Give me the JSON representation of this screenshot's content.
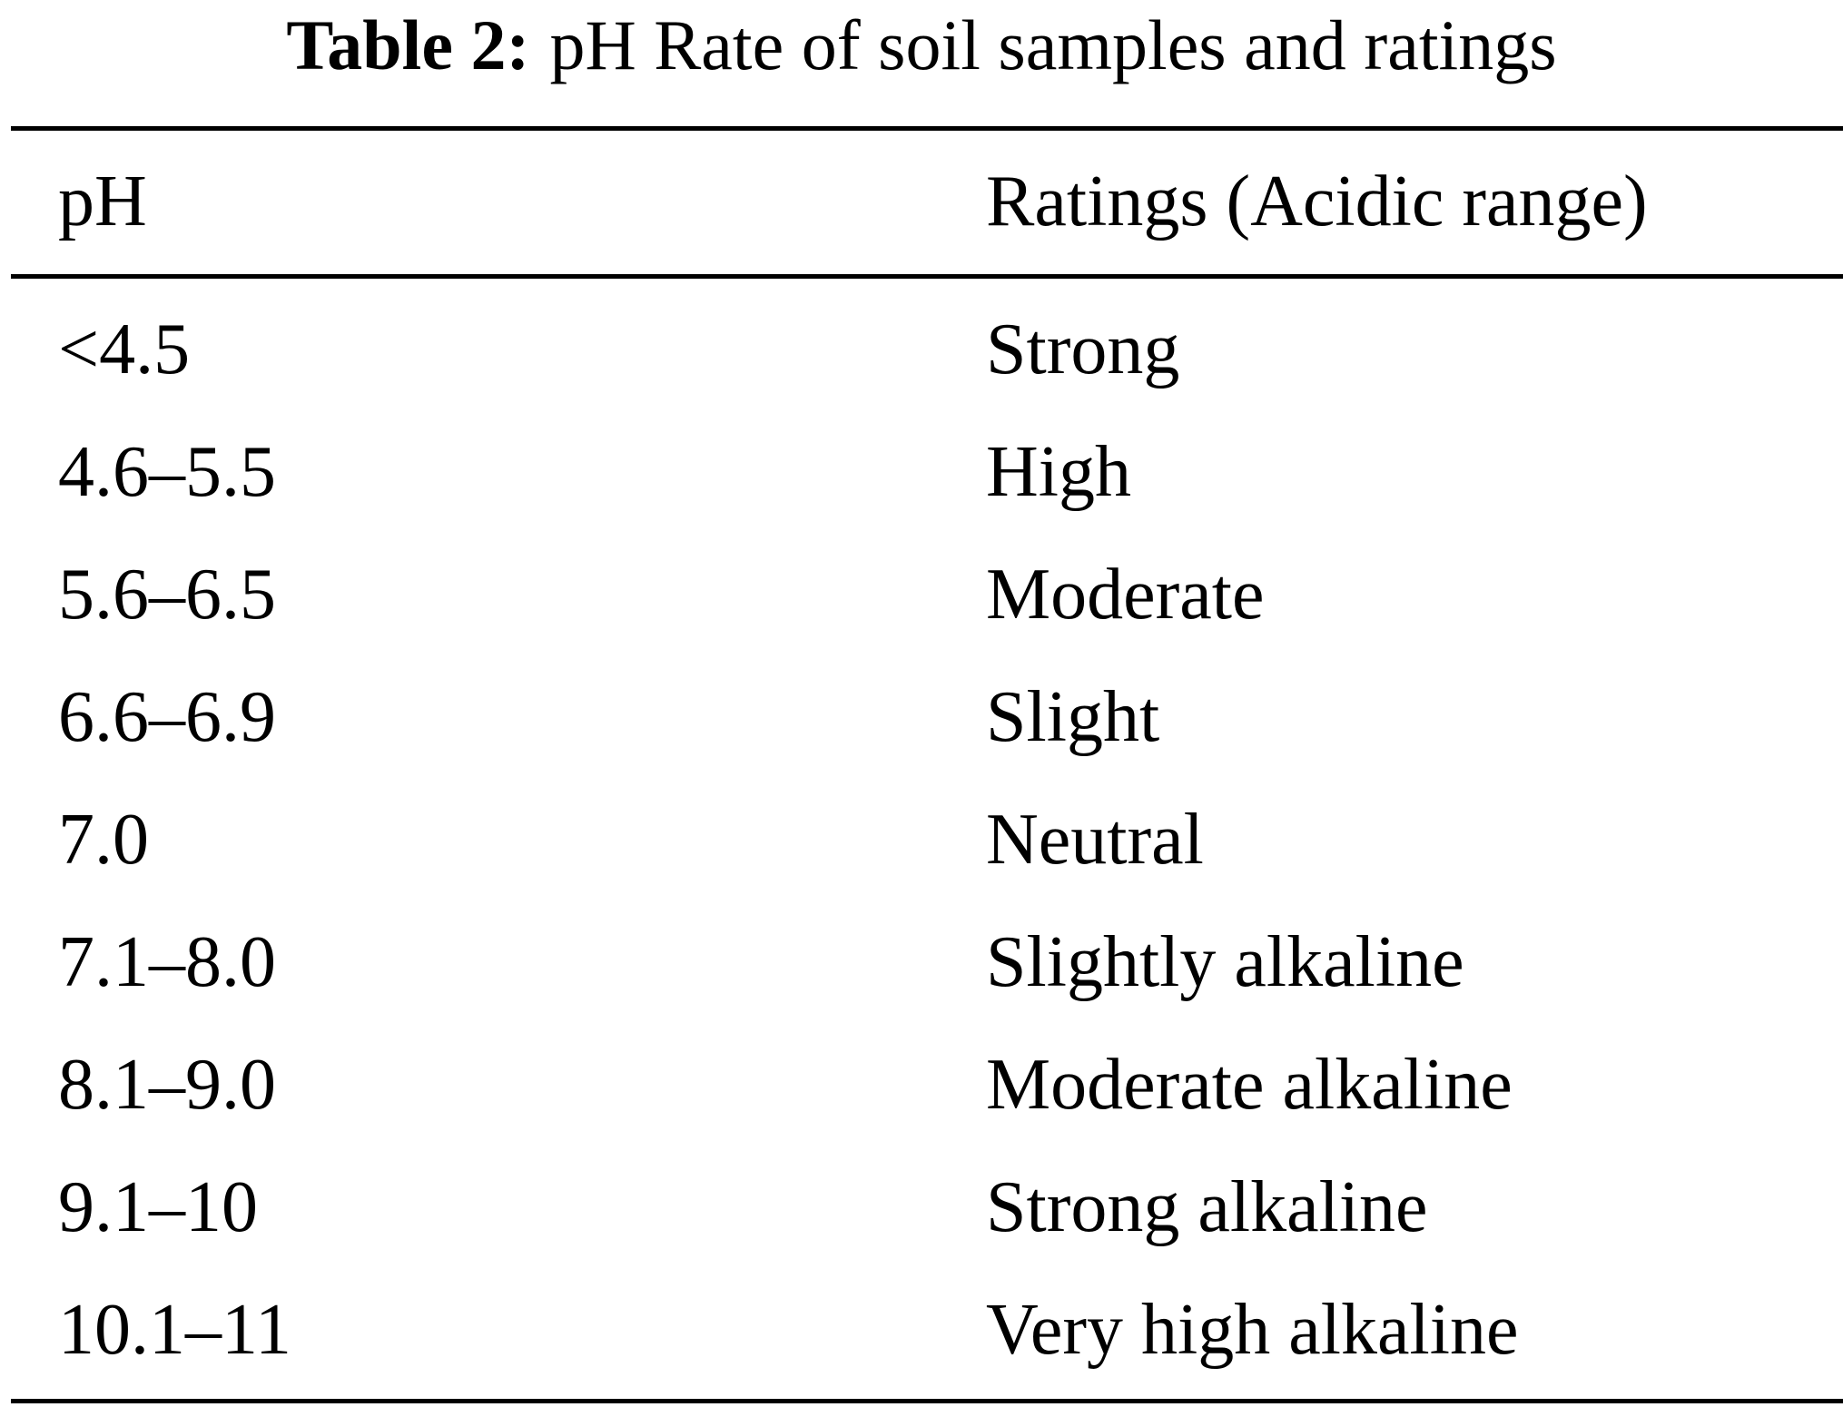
{
  "caption": {
    "label": "Table 2:",
    "text": "pH Rate of soil samples and ratings"
  },
  "table": {
    "headers": {
      "ph": "pH",
      "rating": "Ratings (Acidic range)"
    },
    "rows": [
      {
        "ph": "<4.5",
        "rating": "Strong"
      },
      {
        "ph": "4.6–5.5",
        "rating": "High"
      },
      {
        "ph": "5.6–6.5",
        "rating": "Moderate"
      },
      {
        "ph": "6.6–6.9",
        "rating": "Slight"
      },
      {
        "ph": "7.0",
        "rating": "Neutral"
      },
      {
        "ph": "7.1–8.0",
        "rating": "Slightly alkaline"
      },
      {
        "ph": "8.1–9.0",
        "rating": "Moderate alkaline"
      },
      {
        "ph": "9.1–10",
        "rating": "Strong alkaline"
      },
      {
        "ph": "10.1–11",
        "rating": "Very high alkaline"
      }
    ]
  }
}
